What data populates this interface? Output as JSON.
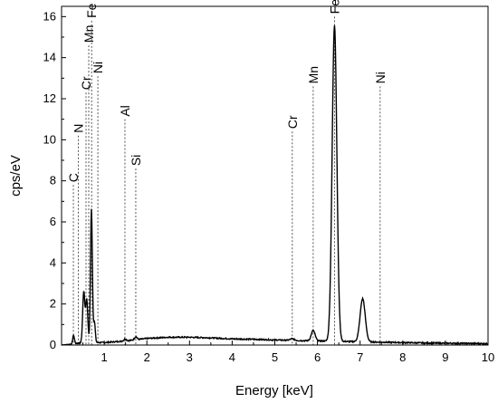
{
  "chart_data": {
    "type": "line",
    "xlabel": "Energy [keV]",
    "ylabel": "cps/eV",
    "xlim": [
      0,
      10
    ],
    "ylim": [
      0,
      16.5
    ],
    "x_ticks": [
      1,
      2,
      3,
      4,
      5,
      6,
      7,
      8,
      9,
      10
    ],
    "y_ticks": [
      0,
      2,
      4,
      6,
      8,
      10,
      12,
      14,
      16
    ],
    "grid": false,
    "legend": "none",
    "series": [
      {
        "baseline_x": [
          0.0,
          0.25,
          0.3,
          0.45,
          0.8,
          1.0,
          1.5,
          2.0,
          2.5,
          3.0,
          3.5,
          4.0,
          4.5,
          5.0,
          5.5,
          6.0,
          6.5,
          7.0,
          7.5,
          8.0,
          8.5,
          9.0,
          9.5,
          10.0
        ],
        "baseline_y": [
          0.0,
          0.05,
          0.08,
          0.1,
          0.12,
          0.12,
          0.2,
          0.32,
          0.38,
          0.38,
          0.35,
          0.3,
          0.28,
          0.25,
          0.22,
          0.2,
          0.18,
          0.16,
          0.14,
          0.12,
          0.1,
          0.09,
          0.08,
          0.07
        ],
        "peaks": [
          {
            "x": 0.28,
            "y": 0.4,
            "w": 0.02
          },
          {
            "x": 0.52,
            "y": 2.5,
            "w": 0.025
          },
          {
            "x": 0.59,
            "y": 2.1,
            "w": 0.025
          },
          {
            "x": 0.7,
            "y": 6.5,
            "w": 0.022
          },
          {
            "x": 0.77,
            "y": 1.0,
            "w": 0.02
          },
          {
            "x": 1.49,
            "y": 0.1,
            "w": 0.03
          },
          {
            "x": 1.74,
            "y": 0.15,
            "w": 0.03
          },
          {
            "x": 5.41,
            "y": 0.08,
            "w": 0.05
          },
          {
            "x": 5.9,
            "y": 0.5,
            "w": 0.045
          },
          {
            "x": 6.4,
            "y": 15.4,
            "w": 0.055
          },
          {
            "x": 7.06,
            "y": 2.1,
            "w": 0.06
          }
        ]
      }
    ],
    "element_markers": [
      {
        "label": "C",
        "x": 0.277,
        "y_top": 7.8
      },
      {
        "label": "N",
        "x": 0.392,
        "y_top": 10.2
      },
      {
        "label": "Cr",
        "x": 0.573,
        "y_top": 12.3
      },
      {
        "label": "Mn",
        "x": 0.637,
        "y_top": 14.6
      },
      {
        "label": "Fe",
        "x": 0.705,
        "y_top": 15.8
      },
      {
        "label": "Ni",
        "x": 0.851,
        "y_top": 13.1
      },
      {
        "label": "Al",
        "x": 1.486,
        "y_top": 11.0
      },
      {
        "label": "Si",
        "x": 1.74,
        "y_top": 8.6
      },
      {
        "label": "Cr",
        "x": 5.41,
        "y_top": 10.4
      },
      {
        "label": "Mn",
        "x": 5.9,
        "y_top": 12.6
      },
      {
        "label": "Fe",
        "x": 6.4,
        "y_top": 16.0
      },
      {
        "label": "Ni",
        "x": 7.47,
        "y_top": 12.6
      }
    ]
  }
}
